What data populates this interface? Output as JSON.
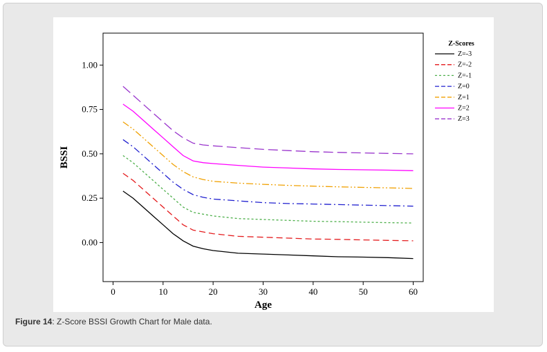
{
  "caption": {
    "label": "Figure 14",
    "text": ": Z-Score BSSI Growth Chart for Male data."
  },
  "chart_data": {
    "type": "line",
    "xlabel": "Age",
    "ylabel": "BSSI",
    "xlim": [
      -2,
      62
    ],
    "ylim": [
      -0.22,
      1.18
    ],
    "xticks": [
      0,
      10,
      20,
      30,
      40,
      50,
      60
    ],
    "yticks": [
      0.0,
      0.25,
      0.5,
      0.75,
      1.0
    ],
    "ytick_labels": [
      "0.00",
      "0.25",
      "0.50",
      "0.75",
      "1.00"
    ],
    "grid": false,
    "legend": {
      "title": "Z-Scores",
      "placement": "right"
    },
    "x": [
      2,
      4,
      6,
      8,
      10,
      12,
      14,
      16,
      18,
      20,
      25,
      30,
      35,
      40,
      45,
      50,
      55,
      60
    ],
    "series": [
      {
        "name": "Z=-3",
        "color": "#000000",
        "dash": "solid",
        "values": [
          0.29,
          0.25,
          0.2,
          0.15,
          0.1,
          0.05,
          0.01,
          -0.02,
          -0.035,
          -0.045,
          -0.06,
          -0.065,
          -0.07,
          -0.075,
          -0.08,
          -0.082,
          -0.085,
          -0.09
        ]
      },
      {
        "name": "Z=-2",
        "color": "#e41a1c",
        "dash": "dashed",
        "values": [
          0.39,
          0.35,
          0.3,
          0.25,
          0.2,
          0.15,
          0.1,
          0.07,
          0.06,
          0.05,
          0.035,
          0.03,
          0.025,
          0.02,
          0.018,
          0.015,
          0.012,
          0.01
        ]
      },
      {
        "name": "Z=-1",
        "color": "#4daf4a",
        "dash": "dotted",
        "values": [
          0.49,
          0.45,
          0.4,
          0.35,
          0.3,
          0.25,
          0.2,
          0.17,
          0.16,
          0.15,
          0.135,
          0.13,
          0.125,
          0.12,
          0.118,
          0.115,
          0.112,
          0.11
        ]
      },
      {
        "name": "Z=0",
        "color": "#1f1fcf",
        "dash": "dashdot",
        "values": [
          0.58,
          0.54,
          0.49,
          0.44,
          0.39,
          0.34,
          0.3,
          0.27,
          0.255,
          0.245,
          0.235,
          0.225,
          0.22,
          0.217,
          0.214,
          0.211,
          0.208,
          0.205
        ]
      },
      {
        "name": "Z=1",
        "color": "#f0a000",
        "dash": "dashdotdot",
        "values": [
          0.68,
          0.64,
          0.59,
          0.54,
          0.49,
          0.44,
          0.4,
          0.37,
          0.355,
          0.345,
          0.335,
          0.328,
          0.322,
          0.318,
          0.314,
          0.311,
          0.308,
          0.305
        ]
      },
      {
        "name": "Z=2",
        "color": "#ff00ff",
        "dash": "solid",
        "values": [
          0.78,
          0.74,
          0.69,
          0.64,
          0.59,
          0.54,
          0.49,
          0.46,
          0.45,
          0.445,
          0.435,
          0.425,
          0.42,
          0.415,
          0.412,
          0.41,
          0.408,
          0.405
        ]
      },
      {
        "name": "Z=3",
        "color": "#9933cc",
        "dash": "longdash",
        "values": [
          0.88,
          0.83,
          0.78,
          0.73,
          0.68,
          0.63,
          0.59,
          0.56,
          0.55,
          0.545,
          0.535,
          0.525,
          0.518,
          0.512,
          0.508,
          0.505,
          0.502,
          0.5
        ]
      }
    ]
  }
}
